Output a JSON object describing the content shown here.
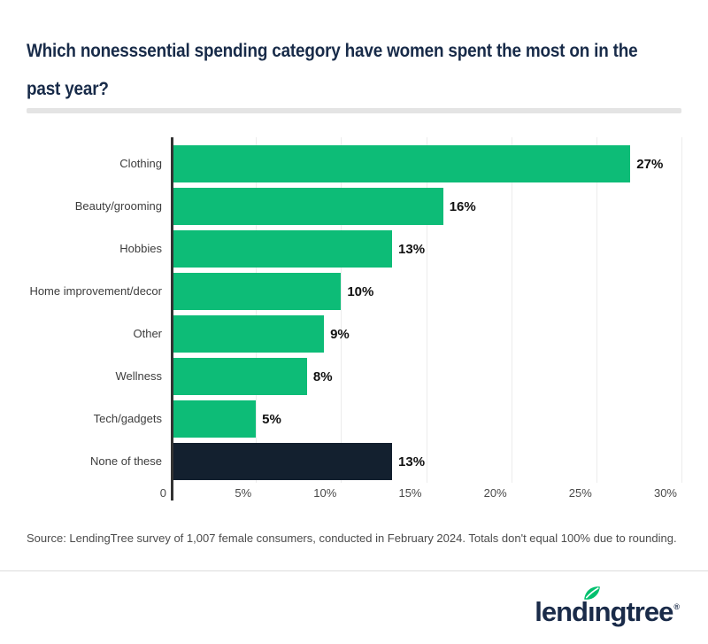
{
  "title": {
    "line1": "Which nonesssential spending category have women spent the most on in the",
    "line2": "past year?"
  },
  "chart_data": {
    "type": "bar",
    "orientation": "horizontal",
    "title": "Which nonesssential spending category have women spent the most on in the past year?",
    "categories": [
      "Clothing",
      "Beauty/grooming",
      "Hobbies",
      "Home improvement/decor",
      "Other",
      "Wellness",
      "Tech/gadgets",
      "None of these"
    ],
    "values": [
      27,
      16,
      13,
      10,
      9,
      8,
      5,
      13
    ],
    "value_labels": [
      "27%",
      "16%",
      "13%",
      "10%",
      "9%",
      "8%",
      "5%",
      "13%"
    ],
    "bar_colors": [
      "#0dbc77",
      "#0dbc77",
      "#0dbc77",
      "#0dbc77",
      "#0dbc77",
      "#0dbc77",
      "#0dbc77",
      "#13202f"
    ],
    "xlabel": "",
    "ylabel": "",
    "xlim": [
      0,
      30
    ],
    "xticks": [
      {
        "value": 0,
        "label": "0"
      },
      {
        "value": 5,
        "label": "5%"
      },
      {
        "value": 10,
        "label": "10%"
      },
      {
        "value": 15,
        "label": "15%"
      },
      {
        "value": 20,
        "label": "20%"
      },
      {
        "value": 25,
        "label": "25%"
      },
      {
        "value": 30,
        "label": "30%"
      }
    ],
    "grid": true,
    "legend": false,
    "colors": {
      "bar_green": "#0dbc77",
      "bar_navy": "#13202f",
      "axis_line": "#333333",
      "gridline": "#ececec"
    }
  },
  "source": "Source: LendingTree survey of 1,007 female consumers, conducted in February 2024. Totals don't equal 100% due to rounding.",
  "footer": {
    "logo": {
      "pre": "lend",
      "dotless_i": "ı",
      "post": "ngtree",
      "registered": "®"
    },
    "colors": {
      "brand_green": "#00c06e",
      "brand_navy": "#1a2b49"
    }
  }
}
